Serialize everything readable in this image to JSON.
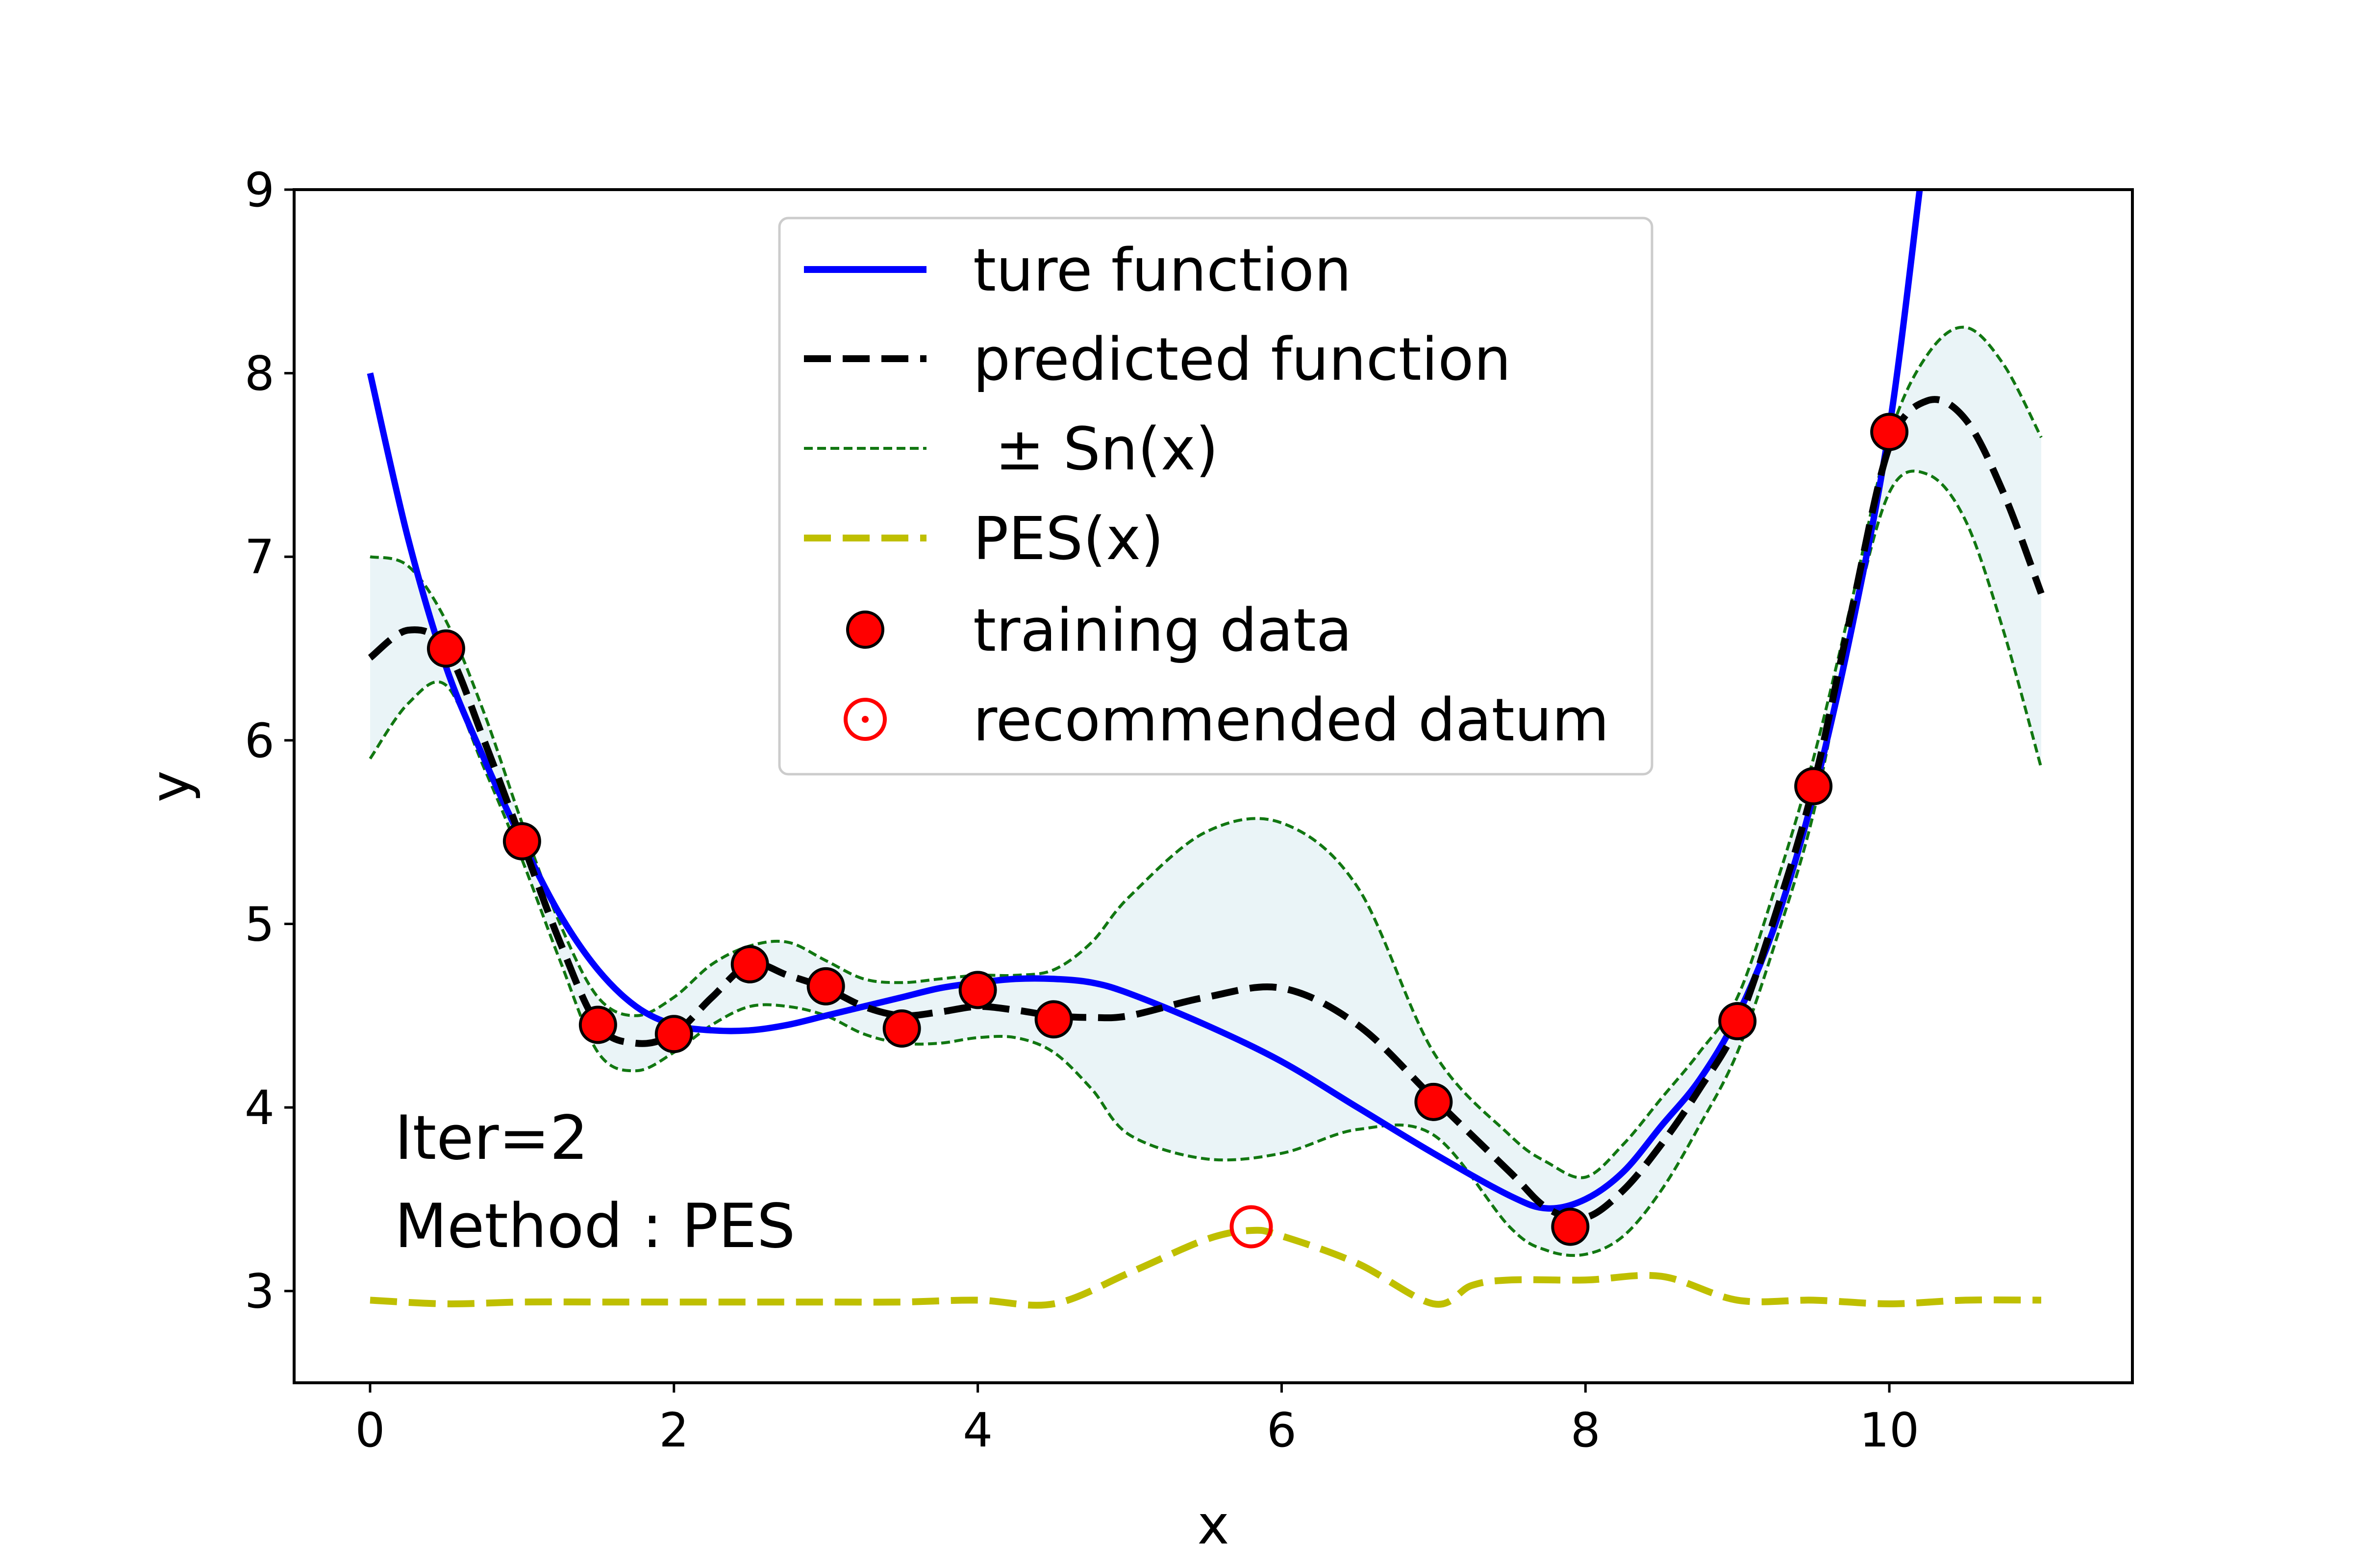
{
  "chart_data": {
    "type": "line",
    "xlabel": "x",
    "ylabel": "y",
    "xlim": [
      -0.5,
      11.6
    ],
    "ylim": [
      2.5,
      9
    ],
    "xticks": [
      0,
      2,
      4,
      6,
      8,
      10
    ],
    "yticks": [
      3,
      4,
      5,
      6,
      7,
      8,
      9
    ],
    "grid": false,
    "legend_position": "top-center",
    "annotations": [
      "Iter=2",
      "Method : PES"
    ],
    "colors": {
      "true_function": "#0000ff",
      "predicted_function": "#000000",
      "band_edge": "#117711",
      "band_fill": "#eaf4f7",
      "pes": "#bfbf00",
      "training_point": "#ff0000",
      "recommended": "#ff0000"
    },
    "series": [
      {
        "name": "ture function",
        "style": "solid",
        "x": [
          0,
          0.25,
          0.5,
          0.75,
          1.0,
          1.25,
          1.5,
          1.75,
          2.0,
          2.25,
          2.5,
          2.75,
          3.0,
          3.25,
          3.5,
          3.75,
          4.0,
          4.25,
          4.5,
          4.75,
          5.0,
          5.5,
          6.0,
          6.5,
          7.0,
          7.5,
          7.75,
          8.0,
          8.25,
          8.5,
          8.75,
          9.0,
          9.25,
          9.5,
          9.75,
          10.0,
          10.2
        ],
        "y": [
          8.0,
          7.1,
          6.4,
          5.9,
          5.45,
          5.05,
          4.75,
          4.55,
          4.45,
          4.42,
          4.42,
          4.45,
          4.5,
          4.55,
          4.6,
          4.65,
          4.68,
          4.7,
          4.7,
          4.68,
          4.62,
          4.45,
          4.25,
          4.0,
          3.75,
          3.52,
          3.45,
          3.5,
          3.65,
          3.9,
          4.15,
          4.5,
          5.0,
          5.7,
          6.6,
          7.7,
          9.0
        ]
      },
      {
        "name": "predicted function",
        "style": "dashed",
        "x": [
          0,
          0.25,
          0.5,
          0.75,
          1.0,
          1.25,
          1.5,
          1.75,
          2.0,
          2.25,
          2.5,
          2.75,
          3.0,
          3.25,
          3.5,
          3.75,
          4.0,
          4.25,
          4.5,
          4.75,
          5.0,
          5.5,
          6.0,
          6.5,
          7.0,
          7.5,
          7.75,
          8.0,
          8.25,
          8.5,
          8.75,
          9.0,
          9.25,
          9.5,
          9.75,
          10.0,
          10.25,
          10.5,
          10.75,
          11.0
        ],
        "y": [
          6.45,
          6.6,
          6.5,
          6.0,
          5.45,
          4.9,
          4.45,
          4.35,
          4.4,
          4.6,
          4.78,
          4.72,
          4.65,
          4.55,
          4.5,
          4.52,
          4.55,
          4.53,
          4.5,
          4.49,
          4.5,
          4.6,
          4.65,
          4.45,
          4.05,
          3.65,
          3.45,
          3.4,
          3.55,
          3.8,
          4.1,
          4.45,
          5.05,
          5.75,
          6.7,
          7.6,
          7.85,
          7.75,
          7.35,
          6.8
        ]
      },
      {
        "name": "± Sn(x)",
        "style": "dotted-band",
        "x": [
          0,
          0.25,
          0.5,
          0.75,
          1.0,
          1.25,
          1.5,
          1.75,
          2.0,
          2.25,
          2.5,
          2.75,
          3.0,
          3.25,
          3.5,
          3.75,
          4.0,
          4.25,
          4.5,
          4.75,
          5.0,
          5.5,
          6.0,
          6.5,
          7.0,
          7.5,
          7.75,
          8.0,
          8.25,
          8.5,
          8.75,
          9.0,
          9.25,
          9.5,
          9.75,
          10.0,
          10.25,
          10.5,
          10.75,
          11.0
        ],
        "upper": [
          7.0,
          6.95,
          6.65,
          6.15,
          5.55,
          5.0,
          4.6,
          4.5,
          4.6,
          4.78,
          4.88,
          4.9,
          4.8,
          4.7,
          4.68,
          4.7,
          4.72,
          4.72,
          4.75,
          4.9,
          5.15,
          5.5,
          5.55,
          5.2,
          4.3,
          3.85,
          3.7,
          3.62,
          3.8,
          4.05,
          4.3,
          4.6,
          5.2,
          5.9,
          6.75,
          7.65,
          8.1,
          8.25,
          8.05,
          7.65
        ],
        "lower": [
          5.9,
          6.2,
          6.3,
          5.85,
          5.35,
          4.8,
          4.3,
          4.2,
          4.3,
          4.45,
          4.55,
          4.55,
          4.5,
          4.4,
          4.35,
          4.35,
          4.38,
          4.38,
          4.3,
          4.1,
          3.85,
          3.72,
          3.75,
          3.88,
          3.85,
          3.35,
          3.22,
          3.2,
          3.3,
          3.55,
          3.9,
          4.3,
          4.9,
          5.6,
          6.6,
          7.35,
          7.45,
          7.2,
          6.6,
          5.85
        ]
      },
      {
        "name": "PES(x)",
        "style": "dashed",
        "x": [
          0,
          0.5,
          1,
          1.5,
          2,
          2.5,
          3,
          3.5,
          4,
          4.5,
          5.0,
          5.5,
          5.8,
          6.0,
          6.5,
          7.0,
          7.25,
          7.5,
          8.0,
          8.5,
          9.0,
          9.5,
          10.0,
          10.5,
          11.0
        ],
        "y": [
          2.95,
          2.93,
          2.94,
          2.94,
          2.94,
          2.94,
          2.94,
          2.94,
          2.95,
          2.93,
          3.1,
          3.28,
          3.33,
          3.3,
          3.15,
          2.93,
          3.03,
          3.06,
          3.06,
          3.08,
          2.95,
          2.95,
          2.93,
          2.95,
          2.95
        ]
      }
    ],
    "training_data": {
      "name": "training data",
      "x": [
        0.5,
        1.0,
        1.5,
        2.0,
        2.5,
        3.0,
        3.5,
        4.0,
        4.5,
        7.0,
        7.9,
        9.0,
        9.5,
        10.0
      ],
      "y": [
        6.5,
        5.45,
        4.45,
        4.4,
        4.78,
        4.66,
        4.43,
        4.64,
        4.48,
        4.03,
        3.35,
        4.47,
        5.75,
        7.68
      ]
    },
    "recommended_datum": {
      "name": "recommended datum",
      "x": 5.8,
      "y": 3.35
    }
  }
}
